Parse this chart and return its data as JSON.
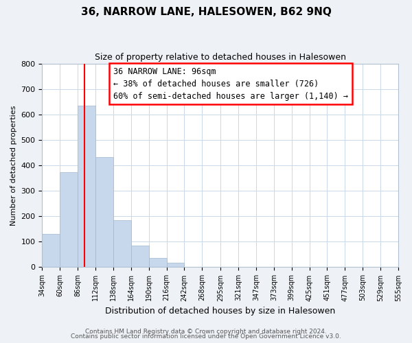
{
  "title": "36, NARROW LANE, HALESOWEN, B62 9NQ",
  "subtitle": "Size of property relative to detached houses in Halesowen",
  "xlabel": "Distribution of detached houses by size in Halesowen",
  "ylabel": "Number of detached properties",
  "bar_color": "#c8d8ec",
  "bar_edge_color": "#a0b8cc",
  "bar_values": [
    130,
    375,
    635,
    432,
    185,
    85,
    35,
    18,
    0,
    0,
    0,
    0,
    0,
    0,
    0,
    0,
    0,
    0,
    0,
    0
  ],
  "bin_labels": [
    "34sqm",
    "60sqm",
    "86sqm",
    "112sqm",
    "138sqm",
    "164sqm",
    "190sqm",
    "216sqm",
    "242sqm",
    "268sqm",
    "295sqm",
    "321sqm",
    "347sqm",
    "373sqm",
    "399sqm",
    "425sqm",
    "451sqm",
    "477sqm",
    "503sqm",
    "529sqm",
    "555sqm"
  ],
  "bin_edges": [
    34,
    60,
    86,
    112,
    138,
    164,
    190,
    216,
    242,
    268,
    295,
    321,
    347,
    373,
    399,
    425,
    451,
    477,
    503,
    529,
    555
  ],
  "ylim": [
    0,
    800
  ],
  "yticks": [
    0,
    100,
    200,
    300,
    400,
    500,
    600,
    700,
    800
  ],
  "red_line_x": 96,
  "annotation_title": "36 NARROW LANE: 96sqm",
  "annotation_line1": "← 38% of detached houses are smaller (726)",
  "annotation_line2": "60% of semi-detached houses are larger (1,140) →",
  "footer1": "Contains HM Land Registry data © Crown copyright and database right 2024.",
  "footer2": "Contains public sector information licensed under the Open Government Licence v3.0.",
  "background_color": "#eef2f6",
  "plot_bg_color": "#ffffff",
  "grid_color": "#c8d8e8"
}
